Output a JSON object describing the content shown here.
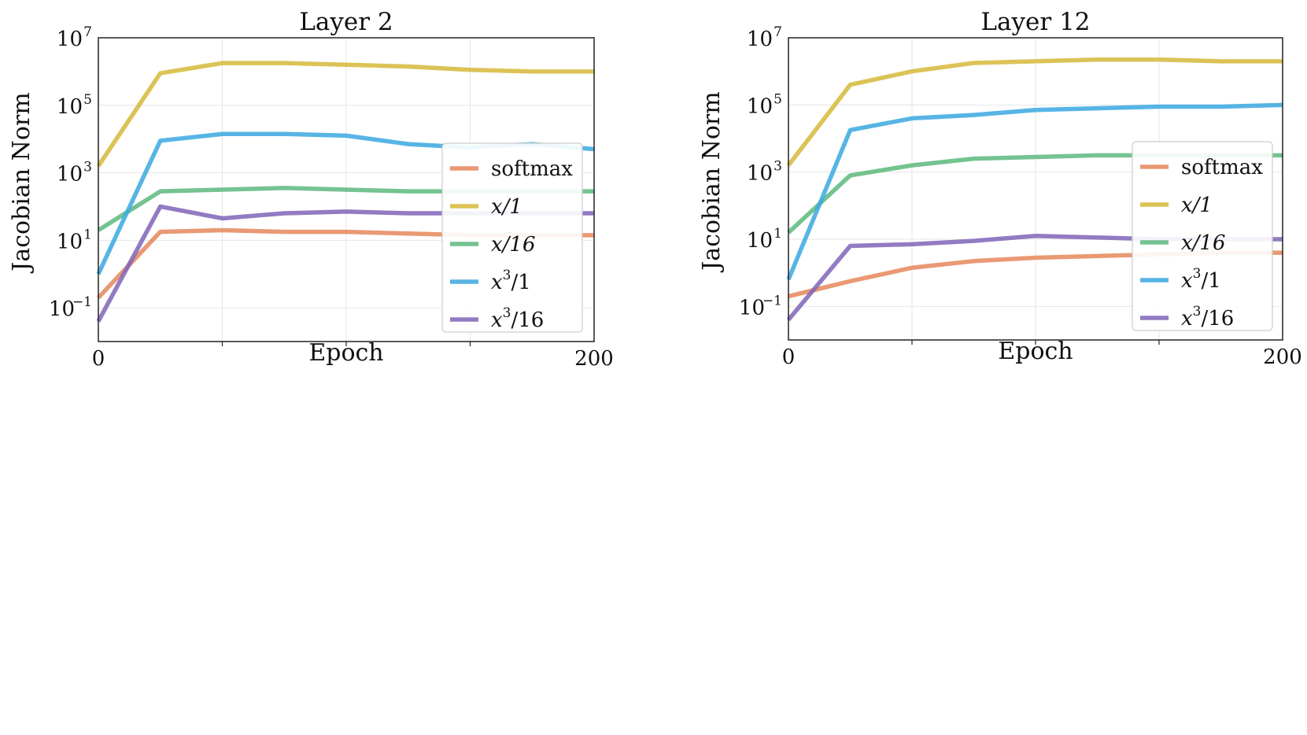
{
  "chart_data": [
    {
      "type": "line",
      "title": "Layer 2",
      "xlabel": "Epoch",
      "ylabel": "Jacobian Norm",
      "yscale": "log",
      "xlim": [
        0,
        200
      ],
      "ylim_log10": [
        -2,
        7
      ],
      "x_ticks": [
        {
          "value": 0,
          "label": "0"
        },
        {
          "value": 200,
          "label": "200"
        }
      ],
      "y_ticks": [
        {
          "exp": 7,
          "base": "10",
          "sup": "7"
        },
        {
          "exp": 5,
          "base": "10",
          "sup": "5"
        },
        {
          "exp": 3,
          "base": "10",
          "sup": "3"
        },
        {
          "exp": 1,
          "base": "10",
          "sup": "1"
        },
        {
          "exp": -1,
          "base": "10",
          "sup": "−1"
        }
      ],
      "grid": true,
      "legend_position": "center-right",
      "x": [
        0,
        25,
        50,
        75,
        100,
        125,
        150,
        175,
        200
      ],
      "series": [
        {
          "name": "softmax",
          "label": "softmax",
          "color": "#e5875a",
          "log10_values": [
            -0.7,
            1.25,
            1.3,
            1.25,
            1.25,
            1.2,
            1.15,
            1.15,
            1.15
          ]
        },
        {
          "name": "x/1",
          "label": "x/1",
          "color": "#d6b939",
          "log10_values": [
            3.2,
            5.95,
            6.25,
            6.25,
            6.2,
            6.15,
            6.05,
            6.0,
            6.0
          ]
        },
        {
          "name": "x/16",
          "label": "x/16",
          "color": "#5cb87e",
          "log10_values": [
            1.3,
            2.45,
            2.5,
            2.55,
            2.5,
            2.45,
            2.45,
            2.45,
            2.45
          ]
        },
        {
          "name": "x^3/1",
          "label_base": "x",
          "label_sup": "3",
          "label_tail": "/1",
          "color": "#3aa8e0",
          "log10_values": [
            0.0,
            3.95,
            4.15,
            4.15,
            4.1,
            3.85,
            3.75,
            3.85,
            3.7
          ]
        },
        {
          "name": "x^3/16",
          "label_base": "x",
          "label_sup": "3",
          "label_tail": "/16",
          "color": "#8064b8",
          "log10_values": [
            -1.4,
            2.0,
            1.65,
            1.8,
            1.85,
            1.8,
            1.8,
            1.8,
            1.8
          ]
        }
      ]
    },
    {
      "type": "line",
      "title": "Layer 12",
      "xlabel": "Epoch",
      "ylabel": "Jacobian Norm",
      "yscale": "log",
      "xlim": [
        0,
        200
      ],
      "ylim_log10": [
        -2,
        7
      ],
      "x_ticks": [
        {
          "value": 0,
          "label": "0"
        },
        {
          "value": 200,
          "label": "200"
        }
      ],
      "y_ticks": [
        {
          "exp": 7,
          "base": "10",
          "sup": "7"
        },
        {
          "exp": 5,
          "base": "10",
          "sup": "5"
        },
        {
          "exp": 3,
          "base": "10",
          "sup": "3"
        },
        {
          "exp": 1,
          "base": "10",
          "sup": "1"
        },
        {
          "exp": -1,
          "base": "10",
          "sup": "−1"
        }
      ],
      "grid": true,
      "legend_position": "center-right",
      "x": [
        0,
        25,
        50,
        75,
        100,
        125,
        150,
        175,
        200
      ],
      "series": [
        {
          "name": "softmax",
          "label": "softmax",
          "color": "#e5875a",
          "log10_values": [
            -0.7,
            -0.25,
            0.15,
            0.35,
            0.45,
            0.5,
            0.55,
            0.6,
            0.6
          ]
        },
        {
          "name": "x/1",
          "label": "x/1",
          "color": "#d6b939",
          "log10_values": [
            3.2,
            5.6,
            6.0,
            6.25,
            6.3,
            6.35,
            6.35,
            6.3,
            6.3
          ]
        },
        {
          "name": "x/16",
          "label": "x/16",
          "color": "#5cb87e",
          "log10_values": [
            1.2,
            2.9,
            3.2,
            3.4,
            3.45,
            3.5,
            3.5,
            3.5,
            3.5
          ]
        },
        {
          "name": "x^3/1",
          "label_base": "x",
          "label_sup": "3",
          "label_tail": "/1",
          "color": "#3aa8e0",
          "log10_values": [
            -0.2,
            4.25,
            4.6,
            4.7,
            4.85,
            4.9,
            4.95,
            4.95,
            5.0
          ]
        },
        {
          "name": "x^3/16",
          "label_base": "x",
          "label_sup": "3",
          "label_tail": "/16",
          "color": "#8064b8",
          "log10_values": [
            -1.4,
            0.8,
            0.85,
            0.95,
            1.1,
            1.05,
            1.0,
            1.0,
            1.0
          ]
        }
      ]
    }
  ]
}
